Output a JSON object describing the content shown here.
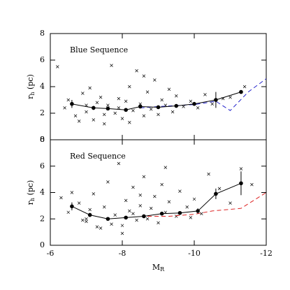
{
  "chart_data": [
    {
      "type": "scatter",
      "annotation": "Blue Sequence",
      "y_label": {
        "main": "r",
        "sub": "h",
        "unit": " (pc)"
      },
      "xlim": [
        -6,
        -12
      ],
      "ylim": [
        0,
        8
      ],
      "yticks": [
        0,
        2,
        4,
        6,
        8
      ],
      "points": {
        "x": [
          -6.2,
          -6.4,
          -6.5,
          -6.7,
          -6.9,
          -7.0,
          -7.1,
          -7.2,
          -7.3,
          -7.4,
          -7.5,
          -7.6,
          -7.7,
          -7.8,
          -7.9,
          -8.0,
          -8.1,
          -8.2,
          -8.3,
          -8.4,
          -8.5,
          -8.6,
          -8.7,
          -8.8,
          -8.9,
          -9.0,
          -9.1,
          -9.2,
          -9.4,
          -9.5,
          -9.7,
          -9.9,
          -10.1,
          -10.3,
          -10.5,
          -10.8,
          -11.0,
          -11.4,
          -7.5,
          -8.2,
          -8.6,
          -7.0,
          -9.3,
          -6.8,
          -7.9
        ],
        "y": [
          5.5,
          2.4,
          3.0,
          1.8,
          3.5,
          2.1,
          3.9,
          1.5,
          2.8,
          3.2,
          1.9,
          2.6,
          5.6,
          2.0,
          3.1,
          1.6,
          2.9,
          4.0,
          2.2,
          5.2,
          2.7,
          1.8,
          3.6,
          2.3,
          4.5,
          1.9,
          3.0,
          2.6,
          2.1,
          3.3,
          2.5,
          2.9,
          2.4,
          3.4,
          2.7,
          3.1,
          3.2,
          4.0,
          1.2,
          1.3,
          4.8,
          2.6,
          3.8,
          1.4,
          2.4
        ]
      },
      "medians": {
        "x": [
          -6.6,
          -7.2,
          -7.6,
          -8.1,
          -8.5,
          -9.0,
          -9.5,
          -10.0,
          -10.6,
          -11.3
        ],
        "y": [
          2.7,
          2.4,
          2.35,
          2.25,
          2.5,
          2.45,
          2.55,
          2.7,
          3.0,
          3.6
        ],
        "errors": [
          0.3,
          0.15,
          0.1,
          0.1,
          0.1,
          0.1,
          0.12,
          0.15,
          0.6,
          0.1
        ]
      },
      "fit": {
        "color": "#2222cc",
        "x": [
          -8.5,
          -9.0,
          -10.0,
          -10.6,
          -11.0,
          -11.5,
          -12.0
        ],
        "y": [
          2.4,
          2.5,
          2.65,
          2.9,
          2.2,
          3.6,
          4.6
        ]
      }
    },
    {
      "type": "scatter",
      "annotation": "Red Sequence",
      "y_label": {
        "main": "r",
        "sub": "h",
        "unit": " (pc)"
      },
      "x_label": {
        "main": "M",
        "sub": "R"
      },
      "xlim": [
        -6,
        -12
      ],
      "ylim": [
        0,
        8
      ],
      "yticks": [
        0,
        2,
        4,
        6,
        8
      ],
      "xticks": [
        -6,
        -8,
        -10,
        -12
      ],
      "points": {
        "x": [
          -6.3,
          -6.5,
          -6.6,
          -6.8,
          -7.0,
          -7.1,
          -7.2,
          -7.3,
          -7.5,
          -7.6,
          -7.7,
          -7.8,
          -7.9,
          -8.0,
          -8.1,
          -8.2,
          -8.3,
          -8.4,
          -8.5,
          -8.6,
          -8.7,
          -8.8,
          -8.9,
          -9.0,
          -9.1,
          -9.2,
          -9.3,
          -9.5,
          -9.6,
          -9.8,
          -10.0,
          -10.2,
          -10.4,
          -10.7,
          -11.0,
          -11.3,
          -11.6,
          -7.4,
          -8.0,
          -8.5,
          -7.0,
          -9.2,
          -6.9,
          -8.3,
          -9.9
        ],
        "y": [
          3.6,
          2.5,
          4.0,
          3.2,
          1.8,
          2.7,
          3.9,
          1.4,
          2.9,
          4.8,
          1.6,
          2.3,
          6.2,
          1.5,
          3.4,
          2.6,
          4.4,
          1.9,
          3.0,
          5.2,
          2.0,
          2.8,
          3.7,
          1.7,
          4.6,
          2.5,
          3.3,
          2.2,
          4.1,
          2.9,
          3.5,
          2.4,
          5.4,
          4.3,
          3.2,
          5.8,
          4.6,
          1.3,
          0.9,
          3.8,
          2.0,
          5.9,
          1.9,
          2.4,
          2.1
        ]
      },
      "medians": {
        "x": [
          -6.6,
          -7.1,
          -7.6,
          -8.1,
          -8.6,
          -9.1,
          -9.6,
          -10.1,
          -10.6,
          -11.3
        ],
        "y": [
          2.95,
          2.3,
          2.0,
          2.1,
          2.2,
          2.4,
          2.45,
          2.6,
          3.9,
          4.7
        ],
        "errors": [
          0.3,
          0.15,
          0.12,
          0.1,
          0.1,
          0.12,
          0.12,
          0.2,
          0.4,
          0.9
        ]
      },
      "fit": {
        "color": "#dd2222",
        "x": [
          -8.7,
          -9.3,
          -10.0,
          -10.5,
          -11.3,
          -12.0
        ],
        "y": [
          2.2,
          2.2,
          2.35,
          2.6,
          2.8,
          4.0
        ]
      }
    }
  ]
}
